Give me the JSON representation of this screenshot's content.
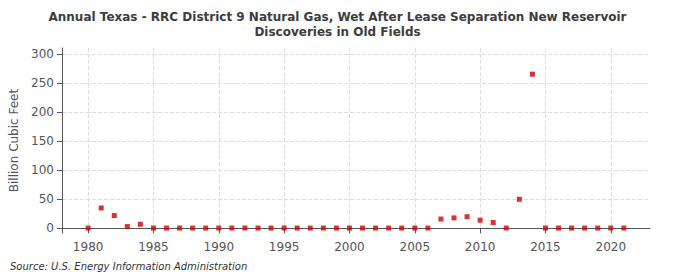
{
  "chart_data": {
    "type": "scatter",
    "title": "Annual Texas - RRC District 9 Natural Gas, Wet After Lease Separation New Reservoir\nDiscoveries in Old Fields",
    "ylabel": "Billion Cubic Feet",
    "annotations": [
      "Source: U.S. Energy Information Administration"
    ],
    "x": [
      1980,
      1981,
      1982,
      1983,
      1984,
      1985,
      1986,
      1987,
      1988,
      1989,
      1990,
      1991,
      1992,
      1993,
      1994,
      1995,
      1996,
      1997,
      1998,
      1999,
      2000,
      2001,
      2002,
      2003,
      2004,
      2005,
      2006,
      2007,
      2008,
      2009,
      2010,
      2011,
      2012,
      2013,
      2014,
      2015,
      2016,
      2017,
      2018,
      2019,
      2020,
      2021
    ],
    "values": [
      0.5,
      35,
      22,
      3,
      7,
      0.5,
      0.5,
      0.5,
      0.5,
      0.5,
      0.5,
      0.5,
      0.5,
      0.5,
      0.5,
      0.5,
      0.5,
      0.5,
      0.5,
      0.5,
      0.5,
      0.5,
      0.5,
      0.5,
      0.5,
      0.5,
      0.5,
      16,
      18,
      20,
      14,
      10,
      0.5,
      50,
      265,
      0.5,
      0.5,
      0.5,
      0.5,
      0.5,
      0.5,
      0.5
    ],
    "color": "#cc0000",
    "marker": "square",
    "xlim": [
      1978,
      2023
    ],
    "ylim": [
      -8,
      310
    ],
    "xticks": [
      1980,
      1985,
      1990,
      1995,
      2000,
      2005,
      2010,
      2015,
      2020
    ],
    "yticks": [
      0,
      50,
      100,
      150,
      200,
      250,
      300
    ],
    "grid": true
  }
}
